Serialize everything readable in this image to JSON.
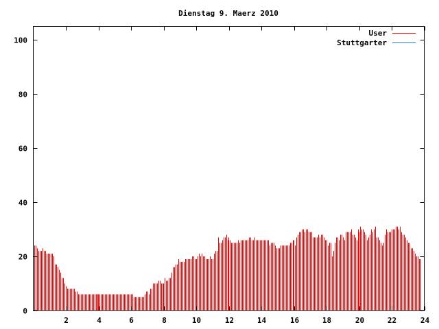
{
  "chart_data": {
    "type": "bar",
    "style": "impulses",
    "title": "Dienstag 9. Maerz 2010",
    "xlabel": "",
    "ylabel": "",
    "xlim": [
      0,
      24
    ],
    "ylim": [
      0,
      105
    ],
    "x_ticks": [
      "2",
      "4",
      "6",
      "8",
      "10",
      "12",
      "14",
      "16",
      "18",
      "20",
      "22",
      "24"
    ],
    "x_tick_values": [
      2,
      4,
      6,
      8,
      10,
      12,
      14,
      16,
      18,
      20,
      22,
      24
    ],
    "y_ticks": [
      "0",
      "20",
      "40",
      "60",
      "80",
      "100"
    ],
    "y_tick_values": [
      0,
      20,
      40,
      60,
      80,
      100
    ],
    "grid": false,
    "legend_position": "top-right",
    "x_start_hour": 0.0833,
    "x_interval_minutes": 5,
    "series": [
      {
        "name": "User",
        "color": "#ff0000",
        "values": [
          24,
          24,
          23,
          22,
          22,
          22,
          23,
          22,
          22,
          21,
          21,
          21,
          21,
          21,
          20,
          17,
          17,
          16,
          15,
          14,
          12,
          12,
          10,
          9,
          8,
          8,
          8,
          8,
          8,
          8,
          7,
          7,
          6,
          6,
          6,
          6,
          6,
          6,
          6,
          6,
          6,
          6,
          6,
          6,
          6,
          6,
          6,
          6,
          6,
          6,
          6,
          6,
          6,
          6,
          6,
          6,
          6,
          6,
          6,
          6,
          6,
          6,
          6,
          6,
          6,
          6,
          6,
          6,
          6,
          6,
          6,
          6,
          6,
          5,
          5,
          5,
          5,
          5,
          5,
          5,
          5,
          6,
          7,
          7,
          6,
          8,
          8,
          10,
          10,
          10,
          10,
          11,
          11,
          10,
          10,
          10,
          12,
          11,
          11,
          12,
          12,
          14,
          16,
          16,
          17,
          17,
          19,
          18,
          18,
          18,
          18,
          19,
          19,
          19,
          19,
          19,
          20,
          20,
          19,
          19,
          20,
          21,
          20,
          21,
          20,
          20,
          19,
          19,
          19,
          20,
          19,
          19,
          21,
          22,
          22,
          27,
          25,
          25,
          26,
          27,
          27,
          28,
          26,
          27,
          26,
          25,
          25,
          25,
          25,
          25,
          26,
          25,
          26,
          26,
          26,
          26,
          26,
          26,
          27,
          27,
          26,
          26,
          27,
          26,
          26,
          26,
          26,
          26,
          26,
          26,
          26,
          26,
          26,
          24,
          25,
          25,
          25,
          24,
          23,
          23,
          23,
          24,
          24,
          24,
          24,
          24,
          24,
          24,
          25,
          25,
          26,
          26,
          24,
          27,
          28,
          29,
          29,
          30,
          30,
          29,
          30,
          30,
          29,
          29,
          29,
          27,
          27,
          27,
          27,
          28,
          27,
          28,
          28,
          27,
          26,
          26,
          24,
          25,
          25,
          20,
          22,
          25,
          27,
          27,
          26,
          28,
          28,
          27,
          26,
          29,
          29,
          29,
          29,
          30,
          28,
          28,
          27,
          26,
          30,
          29,
          31,
          30,
          30,
          29,
          28,
          26,
          27,
          28,
          30,
          29,
          30,
          31,
          27,
          27,
          26,
          25,
          24,
          25,
          28,
          30,
          29,
          29,
          29,
          30,
          30,
          30,
          31,
          31,
          30,
          31,
          29,
          28,
          28,
          27,
          26,
          25,
          25,
          23,
          23,
          22,
          21,
          20,
          20,
          19,
          19
        ]
      },
      {
        "name": "Stuttgarter",
        "color": "#1f6fe0",
        "values": []
      }
    ]
  }
}
